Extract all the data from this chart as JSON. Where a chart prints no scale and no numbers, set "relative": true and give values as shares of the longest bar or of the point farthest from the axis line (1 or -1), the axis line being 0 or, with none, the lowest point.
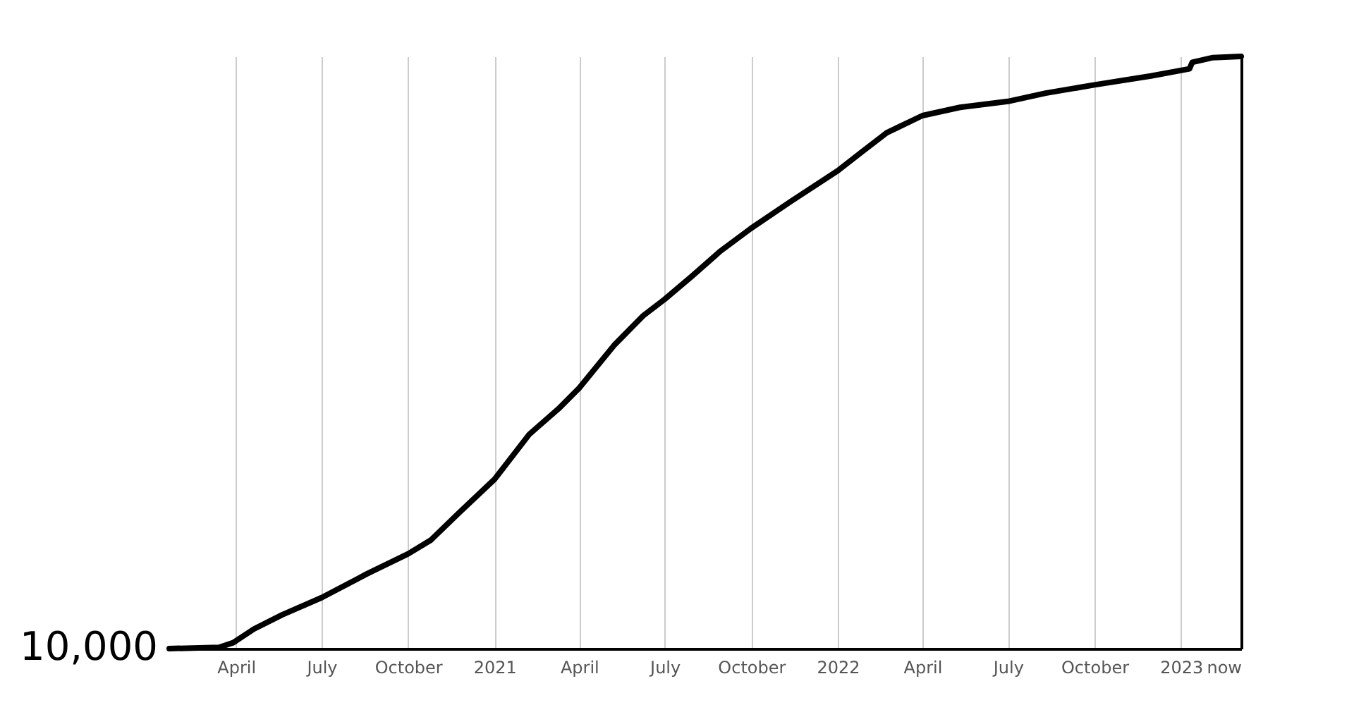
{
  "chart_data": {
    "type": "line",
    "relative": true,
    "grid": "x",
    "annotations": [
      "10,000"
    ],
    "xlim": [
      "2020-01-21",
      "2023-03-06"
    ],
    "xticks": [
      {
        "value": "2020-04-01",
        "label": "April"
      },
      {
        "value": "2020-07-01",
        "label": "July"
      },
      {
        "value": "2020-10-01",
        "label": "October"
      },
      {
        "value": "2021-01-01",
        "label": "2021"
      },
      {
        "value": "2021-04-01",
        "label": "April"
      },
      {
        "value": "2021-07-01",
        "label": "July"
      },
      {
        "value": "2021-10-01",
        "label": "October"
      },
      {
        "value": "2022-01-01",
        "label": "2022"
      },
      {
        "value": "2022-04-01",
        "label": "April"
      },
      {
        "value": "2022-07-01",
        "label": "July"
      },
      {
        "value": "2022-10-01",
        "label": "October"
      },
      {
        "value": "2023-01-01",
        "label": "2023"
      },
      {
        "value": "2023-03-06",
        "label": "now"
      }
    ],
    "x": [
      "2020-01-21",
      "2020-03-14",
      "2020-03-29",
      "2020-04-20",
      "2020-05-20",
      "2020-07-01",
      "2020-08-18",
      "2020-10-01",
      "2020-10-25",
      "2020-11-24",
      "2021-01-01",
      "2021-02-07",
      "2021-03-10",
      "2021-04-01",
      "2021-05-08",
      "2021-06-08",
      "2021-07-01",
      "2021-07-30",
      "2021-08-29",
      "2021-10-01",
      "2021-11-12",
      "2022-01-01",
      "2022-01-26",
      "2022-02-22",
      "2022-04-01",
      "2022-05-11",
      "2022-07-01",
      "2022-08-10",
      "2022-10-01",
      "2022-11-30",
      "2023-01-10",
      "2023-01-13",
      "2023-02-04",
      "2023-03-06"
    ],
    "series": [
      {
        "color": "#000000",
        "line_style": "solid",
        "values": [
          0,
          0.002,
          0.01,
          0.033,
          0.057,
          0.086,
          0.126,
          0.16,
          0.183,
          0.229,
          0.286,
          0.362,
          0.405,
          0.44,
          0.512,
          0.562,
          0.59,
          0.629,
          0.671,
          0.71,
          0.755,
          0.807,
          0.838,
          0.871,
          0.9,
          0.914,
          0.924,
          0.938,
          0.952,
          0.967,
          0.979,
          0.99,
          0.998,
          1
        ]
      }
    ]
  }
}
